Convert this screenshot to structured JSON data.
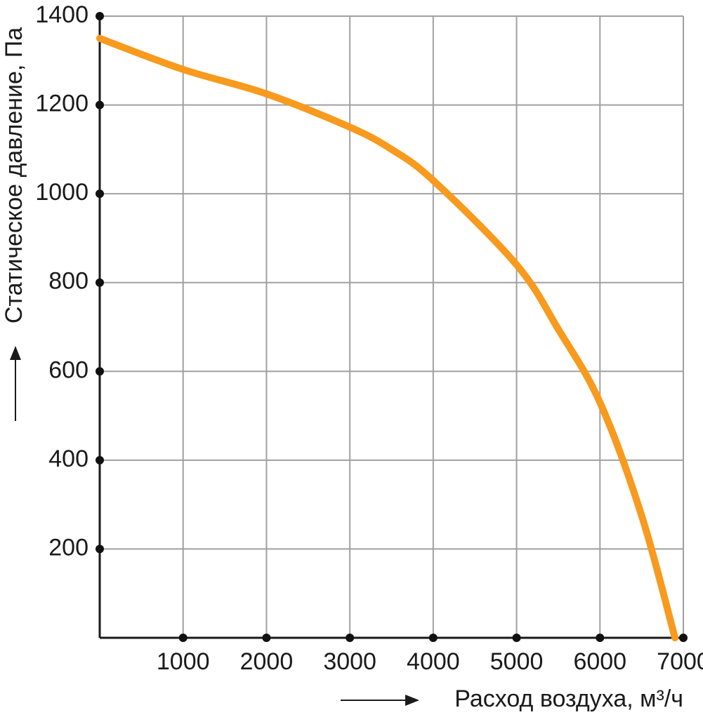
{
  "chart_data": {
    "type": "line",
    "x_label": "Расход воздуха, м³/ч",
    "y_label": "Статическое давление, Па",
    "xlim": [
      0,
      7000
    ],
    "ylim": [
      0,
      1400
    ],
    "xticks": [
      1000,
      2000,
      3000,
      4000,
      5000,
      6000,
      7000
    ],
    "yticks": [
      200,
      400,
      600,
      800,
      1000,
      1200,
      1400
    ],
    "grid": true,
    "series": [
      {
        "color": "#f79a1e",
        "x": [
          0,
          1000,
          2000,
          3000,
          3500,
          4000,
          5000,
          5500,
          6000,
          6500,
          6900
        ],
        "values": [
          1350,
          1280,
          1225,
          1150,
          1100,
          1030,
          840,
          695,
          530,
          275,
          0
        ]
      }
    ]
  }
}
